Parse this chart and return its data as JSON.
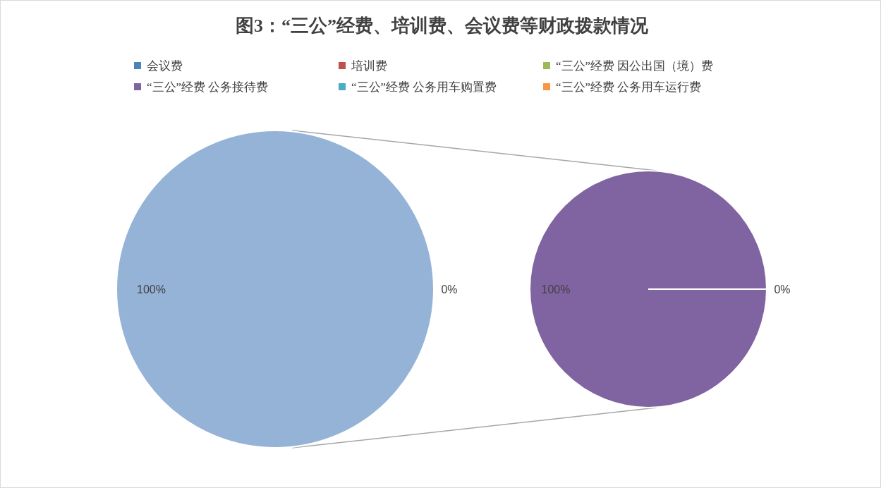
{
  "chart_data": [
    {
      "type": "pie",
      "title": "图3：“三公”经费、培训费、会议费等财政拨款情况",
      "categories": [
        "会议费",
        "培训费",
        "“三公”经费 因公出国（境）费",
        null
      ],
      "values": [
        0,
        0,
        0,
        100
      ],
      "colors": [
        "#4f81bd",
        "#c0504d",
        "#9bbb59",
        "#95b3d7"
      ],
      "value_labels": [
        null,
        null,
        "0%",
        "100%"
      ],
      "legend": "top"
    },
    {
      "type": "pie",
      "categories": [
        "“三公”经费 公务接待费",
        "“三公”经费 公务用车购置费",
        "“三公”经费 公务用车运行费"
      ],
      "values": [
        100,
        0,
        0
      ],
      "colors": [
        "#8064a2",
        "#4bacc6",
        "#f79646"
      ],
      "value_labels": [
        "100%",
        "0%",
        null
      ],
      "legend": "top"
    }
  ]
}
